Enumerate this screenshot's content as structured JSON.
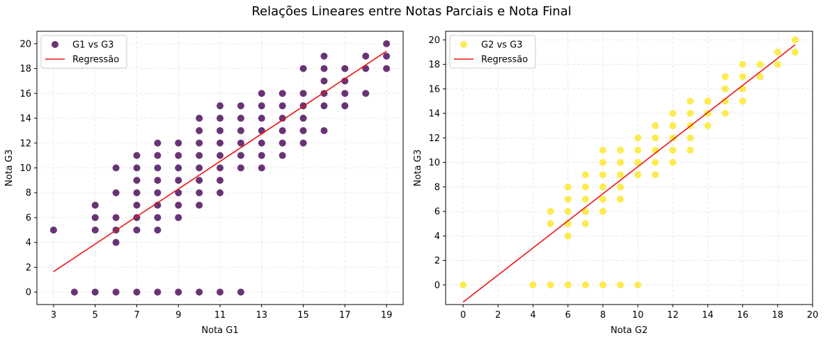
{
  "suptitle": "Relações Lineares entre Notas Parciais e Nota Final",
  "chart_data": [
    {
      "type": "scatter",
      "xlabel": "Nota G1",
      "ylabel": "Nota G3",
      "xlim": [
        2.2,
        19.8
      ],
      "ylim": [
        -1.0,
        21.0
      ],
      "xticks": [
        3,
        5,
        7,
        9,
        11,
        13,
        15,
        17,
        19
      ],
      "yticks": [
        0,
        2,
        4,
        6,
        8,
        10,
        12,
        14,
        16,
        18,
        20
      ],
      "grid": true,
      "legend_position": "top-left",
      "series": [
        {
          "name": "G1 vs G3",
          "kind": "points",
          "color": "#440154",
          "points": [
            [
              3,
              5
            ],
            [
              4,
              0
            ],
            [
              5,
              0
            ],
            [
              5,
              5
            ],
            [
              5,
              6
            ],
            [
              5,
              7
            ],
            [
              6,
              0
            ],
            [
              6,
              4
            ],
            [
              6,
              5
            ],
            [
              6,
              6
            ],
            [
              6,
              8
            ],
            [
              6,
              10
            ],
            [
              7,
              0
            ],
            [
              7,
              5
            ],
            [
              7,
              6
            ],
            [
              7,
              7
            ],
            [
              7,
              8
            ],
            [
              7,
              9
            ],
            [
              7,
              10
            ],
            [
              7,
              11
            ],
            [
              8,
              0
            ],
            [
              8,
              5
            ],
            [
              8,
              6
            ],
            [
              8,
              7
            ],
            [
              8,
              8
            ],
            [
              8,
              9
            ],
            [
              8,
              10
            ],
            [
              8,
              11
            ],
            [
              8,
              12
            ],
            [
              9,
              0
            ],
            [
              9,
              6
            ],
            [
              9,
              7
            ],
            [
              9,
              8
            ],
            [
              9,
              9
            ],
            [
              9,
              10
            ],
            [
              9,
              11
            ],
            [
              9,
              12
            ],
            [
              10,
              0
            ],
            [
              10,
              7
            ],
            [
              10,
              8
            ],
            [
              10,
              9
            ],
            [
              10,
              10
            ],
            [
              10,
              11
            ],
            [
              10,
              12
            ],
            [
              10,
              13
            ],
            [
              10,
              14
            ],
            [
              11,
              0
            ],
            [
              11,
              8
            ],
            [
              11,
              9
            ],
            [
              11,
              10
            ],
            [
              11,
              11
            ],
            [
              11,
              12
            ],
            [
              11,
              13
            ],
            [
              11,
              14
            ],
            [
              11,
              15
            ],
            [
              12,
              0
            ],
            [
              12,
              10
            ],
            [
              12,
              11
            ],
            [
              12,
              12
            ],
            [
              12,
              13
            ],
            [
              12,
              14
            ],
            [
              12,
              15
            ],
            [
              13,
              10
            ],
            [
              13,
              11
            ],
            [
              13,
              12
            ],
            [
              13,
              13
            ],
            [
              13,
              14
            ],
            [
              13,
              15
            ],
            [
              13,
              16
            ],
            [
              14,
              11
            ],
            [
              14,
              12
            ],
            [
              14,
              13
            ],
            [
              14,
              14
            ],
            [
              14,
              15
            ],
            [
              14,
              16
            ],
            [
              15,
              12
            ],
            [
              15,
              13
            ],
            [
              15,
              14
            ],
            [
              15,
              15
            ],
            [
              15,
              16
            ],
            [
              15,
              18
            ],
            [
              16,
              13
            ],
            [
              16,
              15
            ],
            [
              16,
              16
            ],
            [
              16,
              17
            ],
            [
              16,
              18
            ],
            [
              16,
              19
            ],
            [
              17,
              15
            ],
            [
              17,
              16
            ],
            [
              17,
              17
            ],
            [
              17,
              18
            ],
            [
              18,
              16
            ],
            [
              18,
              18
            ],
            [
              18,
              19
            ],
            [
              19,
              18
            ],
            [
              19,
              19
            ],
            [
              19,
              20
            ]
          ]
        },
        {
          "name": "Regressão",
          "kind": "line",
          "color": "#ee1111",
          "points": [
            [
              3,
              1.65
            ],
            [
              19,
              19.4
            ]
          ]
        }
      ]
    },
    {
      "type": "scatter",
      "xlabel": "Nota G2",
      "ylabel": "Nota G3",
      "xlim": [
        -1.0,
        20.0
      ],
      "ylim": [
        -1.6,
        20.7
      ],
      "xticks": [
        0,
        2,
        4,
        6,
        8,
        10,
        12,
        14,
        16,
        18,
        20
      ],
      "yticks": [
        0,
        2,
        4,
        6,
        8,
        10,
        12,
        14,
        16,
        18,
        20
      ],
      "grid": true,
      "legend_position": "top-left",
      "series": [
        {
          "name": "G2 vs G3",
          "kind": "points",
          "color": "#fde725",
          "points": [
            [
              0,
              0
            ],
            [
              4,
              0
            ],
            [
              5,
              0
            ],
            [
              5,
              5
            ],
            [
              5,
              6
            ],
            [
              6,
              0
            ],
            [
              6,
              4
            ],
            [
              6,
              5
            ],
            [
              6,
              6
            ],
            [
              6,
              7
            ],
            [
              6,
              8
            ],
            [
              7,
              0
            ],
            [
              7,
              5
            ],
            [
              7,
              6
            ],
            [
              7,
              7
            ],
            [
              7,
              8
            ],
            [
              7,
              9
            ],
            [
              8,
              0
            ],
            [
              8,
              6
            ],
            [
              8,
              7
            ],
            [
              8,
              8
            ],
            [
              8,
              9
            ],
            [
              8,
              10
            ],
            [
              8,
              11
            ],
            [
              9,
              0
            ],
            [
              9,
              7
            ],
            [
              9,
              8
            ],
            [
              9,
              9
            ],
            [
              9,
              10
            ],
            [
              9,
              11
            ],
            [
              10,
              0
            ],
            [
              10,
              9
            ],
            [
              10,
              10
            ],
            [
              10,
              11
            ],
            [
              10,
              12
            ],
            [
              11,
              9
            ],
            [
              11,
              10
            ],
            [
              11,
              11
            ],
            [
              11,
              12
            ],
            [
              11,
              13
            ],
            [
              12,
              10
            ],
            [
              12,
              11
            ],
            [
              12,
              12
            ],
            [
              12,
              13
            ],
            [
              12,
              14
            ],
            [
              13,
              11
            ],
            [
              13,
              12
            ],
            [
              13,
              13
            ],
            [
              13,
              14
            ],
            [
              13,
              15
            ],
            [
              14,
              13
            ],
            [
              14,
              14
            ],
            [
              14,
              15
            ],
            [
              15,
              14
            ],
            [
              15,
              15
            ],
            [
              15,
              16
            ],
            [
              15,
              17
            ],
            [
              16,
              15
            ],
            [
              16,
              16
            ],
            [
              16,
              17
            ],
            [
              16,
              18
            ],
            [
              17,
              17
            ],
            [
              17,
              18
            ],
            [
              18,
              18
            ],
            [
              18,
              19
            ],
            [
              19,
              19
            ],
            [
              19,
              20
            ]
          ]
        },
        {
          "name": "Regressão",
          "kind": "line",
          "color": "#ee1111",
          "points": [
            [
              0,
              -1.4
            ],
            [
              19,
              19.6
            ]
          ]
        }
      ]
    }
  ]
}
